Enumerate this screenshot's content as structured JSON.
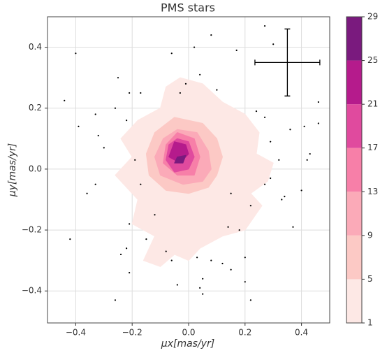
{
  "chart_data": {
    "type": "contourf",
    "title": "PMS stars",
    "xlabel": "μx[mas/yr]",
    "ylabel": "μy[mas/yr]",
    "xlim": [
      -0.5,
      0.5
    ],
    "ylim": [
      -0.505,
      0.5
    ],
    "xticks": [
      {
        "value": -0.4,
        "label": "−0.4"
      },
      {
        "value": -0.2,
        "label": "−0.2"
      },
      {
        "value": 0.0,
        "label": "0.0"
      },
      0.2,
      0.4
    ],
    "yticks": [
      {
        "value": -0.4,
        "label": "−0.4"
      },
      {
        "value": -0.2,
        "label": "−0.2"
      },
      {
        "value": 0.0,
        "label": "0.0"
      },
      0.2,
      0.4
    ],
    "grid": true,
    "levels": [
      1,
      5,
      9,
      13,
      17,
      21,
      25,
      29
    ],
    "level_colors": [
      "#fde8e5",
      "#fcc9c5",
      "#fbaab8",
      "#f77fa8",
      "#e04a9e",
      "#b51b8c",
      "#7a1a7e"
    ],
    "contours": [
      {
        "x": [
          -0.03,
          0.05,
          0.12,
          0.2,
          0.25,
          0.24,
          0.3,
          0.28,
          0.22,
          0.26,
          0.2,
          0.12,
          0.04,
          0.0,
          -0.05,
          -0.1,
          -0.16,
          -0.12,
          -0.2,
          -0.18,
          -0.26,
          -0.2,
          -0.24,
          -0.18,
          -0.1,
          -0.08
        ],
        "y": [
          0.3,
          0.28,
          0.22,
          0.18,
          0.12,
          0.05,
          0.02,
          -0.04,
          -0.08,
          -0.12,
          -0.2,
          -0.22,
          -0.26,
          -0.3,
          -0.28,
          -0.32,
          -0.3,
          -0.22,
          -0.18,
          -0.1,
          -0.02,
          0.04,
          0.1,
          0.16,
          0.2,
          0.27
        ]
      },
      {
        "x": [
          -0.05,
          0.05,
          0.1,
          0.12,
          0.1,
          0.07,
          0.0,
          -0.08,
          -0.14,
          -0.15,
          -0.12
        ],
        "y": [
          0.17,
          0.15,
          0.1,
          0.04,
          -0.02,
          -0.06,
          -0.08,
          -0.07,
          -0.02,
          0.05,
          0.12
        ]
      },
      {
        "x": [
          -0.04,
          0.03,
          0.07,
          0.08,
          0.05,
          -0.02,
          -0.1,
          -0.12,
          -0.09
        ],
        "y": [
          0.13,
          0.12,
          0.06,
          0.0,
          -0.04,
          -0.05,
          -0.02,
          0.04,
          0.1
        ]
      },
      {
        "x": [
          -0.04,
          0.02,
          0.04,
          0.02,
          -0.04,
          -0.09,
          -0.08
        ],
        "y": [
          0.12,
          0.1,
          0.04,
          -0.02,
          -0.02,
          0.02,
          0.08
        ]
      },
      {
        "x": [
          -0.04,
          0.0,
          0.02,
          0.0,
          -0.05,
          -0.08,
          -0.07
        ],
        "y": [
          0.1,
          0.09,
          0.04,
          0.0,
          -0.01,
          0.03,
          0.08
        ]
      },
      {
        "x": [
          -0.05,
          -0.01,
          0.0,
          -0.03,
          -0.07
        ],
        "y": [
          0.09,
          0.08,
          0.05,
          0.02,
          0.04
        ]
      },
      {
        "x": [
          -0.04,
          -0.01,
          -0.02,
          -0.05
        ],
        "y": [
          0.04,
          0.045,
          0.02,
          0.02
        ]
      }
    ],
    "points": {
      "color": "#000000",
      "x": [
        -0.44,
        -0.4,
        -0.39,
        -0.33,
        -0.32,
        -0.25,
        -0.26,
        -0.21,
        -0.17,
        -0.22,
        -0.06,
        0.02,
        0.08,
        0.17,
        0.27,
        -0.03,
        -0.01,
        0.04,
        0.1,
        0.3,
        0.24,
        0.27,
        0.29,
        0.32,
        0.36,
        0.41,
        0.43,
        0.46,
        0.46,
        0.42,
        0.4,
        0.33,
        0.37,
        0.34,
        0.29,
        0.27,
        0.22,
        0.18,
        0.2,
        0.15,
        0.2,
        0.12,
        0.08,
        0.05,
        0.04,
        -0.04,
        -0.06,
        0.03,
        -0.08,
        -0.15,
        -0.22,
        -0.24,
        -0.21,
        -0.26,
        -0.42,
        -0.33,
        -0.36,
        -0.21,
        -0.12,
        0.05,
        0.22,
        0.15,
        0.14,
        -0.3,
        -0.19,
        -0.17
      ],
      "y": [
        0.225,
        0.38,
        0.14,
        0.18,
        0.11,
        0.3,
        0.2,
        0.25,
        0.25,
        0.16,
        0.38,
        0.4,
        0.44,
        0.39,
        0.47,
        0.25,
        0.28,
        0.31,
        0.26,
        0.41,
        0.19,
        0.17,
        0.09,
        0.03,
        0.13,
        0.14,
        0.05,
        0.22,
        0.15,
        0.03,
        -0.07,
        -0.1,
        -0.19,
        -0.09,
        -0.03,
        -0.05,
        -0.12,
        -0.2,
        -0.29,
        -0.33,
        -0.37,
        -0.31,
        -0.3,
        -0.36,
        -0.39,
        -0.38,
        -0.3,
        -0.29,
        -0.27,
        -0.23,
        -0.26,
        -0.28,
        -0.34,
        -0.43,
        -0.23,
        -0.05,
        -0.08,
        -0.18,
        -0.15,
        -0.41,
        -0.43,
        -0.08,
        -0.19,
        0.07,
        0.03,
        -0.05
      ]
    },
    "error_bar": {
      "x": 0.35,
      "y": 0.35,
      "xerr": 0.115,
      "yerr": 0.11
    }
  }
}
